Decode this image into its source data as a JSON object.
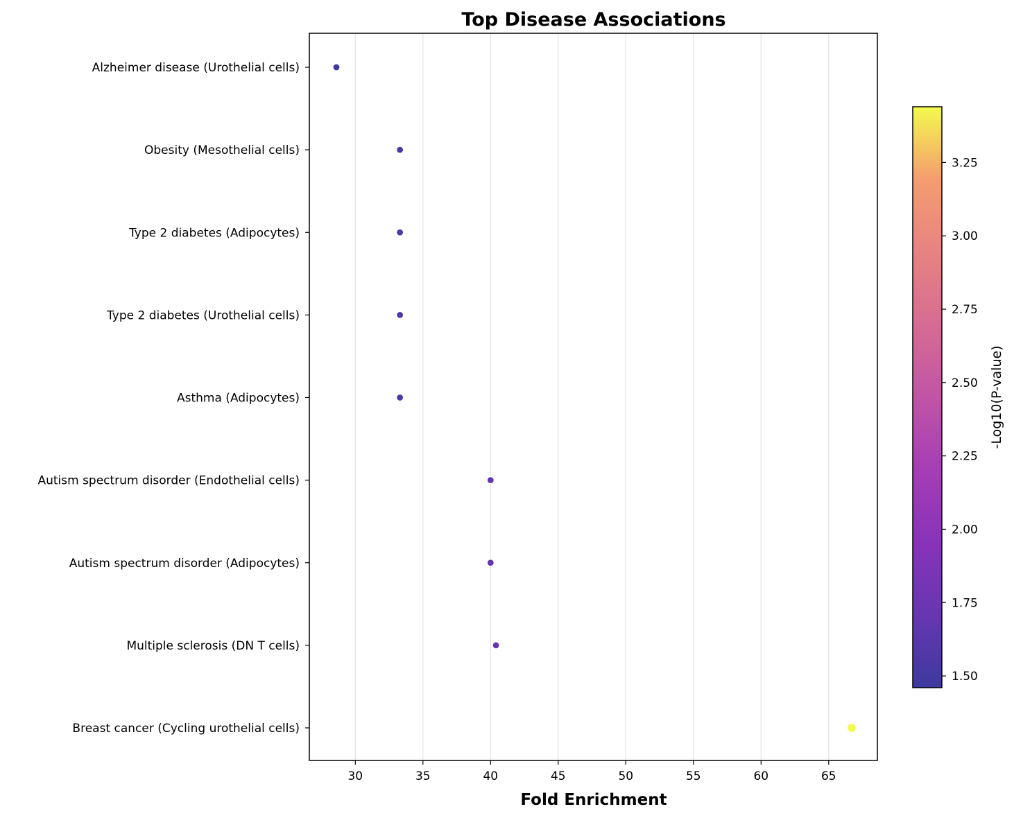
{
  "chart_data": {
    "type": "scatter",
    "title": "Top Disease Associations",
    "xlabel": "Fold Enrichment",
    "ylabel": "",
    "xlim": [
      26.6,
      68.6
    ],
    "xticks": [
      30,
      35,
      40,
      45,
      50,
      55,
      60,
      65
    ],
    "grid": "vertical",
    "categories": [
      "Alzheimer disease (Urothelial cells)",
      "Obesity (Mesothelial cells)",
      "Type 2 diabetes (Adipocytes)",
      "Type 2 diabetes (Urothelial cells)",
      "Asthma (Adipocytes)",
      "Autism spectrum disorder (Endothelial cells)",
      "Autism spectrum disorder (Adipocytes)",
      "Multiple sclerosis (DN T cells)",
      "Breast cancer (Cycling urothelial cells)"
    ],
    "points": [
      {
        "x": 28.6,
        "neg_log10_p": 1.46
      },
      {
        "x": 33.3,
        "neg_log10_p": 1.55
      },
      {
        "x": 33.3,
        "neg_log10_p": 1.55
      },
      {
        "x": 33.3,
        "neg_log10_p": 1.55
      },
      {
        "x": 33.3,
        "neg_log10_p": 1.55
      },
      {
        "x": 40.0,
        "neg_log10_p": 1.7
      },
      {
        "x": 40.0,
        "neg_log10_p": 1.7
      },
      {
        "x": 40.4,
        "neg_log10_p": 1.72
      },
      {
        "x": 66.7,
        "neg_log10_p": 3.44
      }
    ],
    "colorbar": {
      "label": "-Log10(P-value)",
      "range": [
        1.46,
        3.44
      ],
      "ticks": [
        "1.50",
        "1.75",
        "2.00",
        "2.25",
        "2.50",
        "2.75",
        "3.00",
        "3.25"
      ],
      "colormap": "plasma"
    }
  }
}
